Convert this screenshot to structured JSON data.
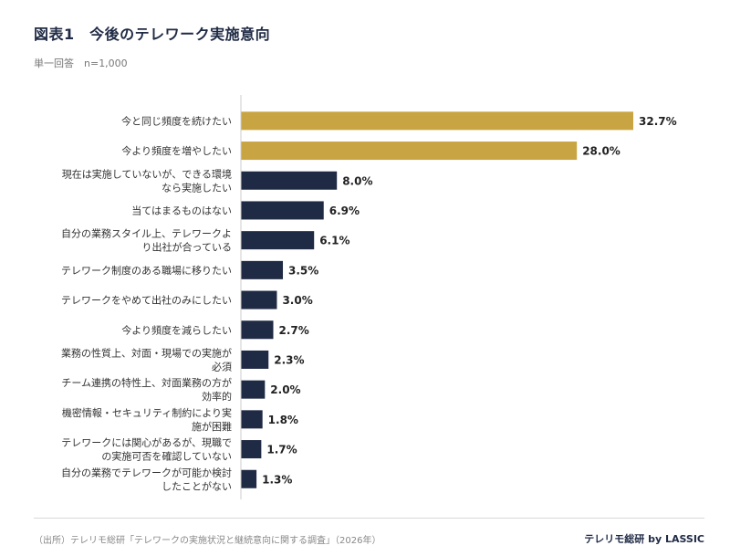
{
  "header": {
    "title": "図表1　今後のテレワーク実施意向",
    "subtitle": "単一回答　n=1,000"
  },
  "footer": {
    "source": "（出所）テレリモ総研「テレワークの実施状況と継続意向に関する調査」（2026年）",
    "brand": "テレリモ総研 by LASSIC"
  },
  "colors": {
    "highlight": "#c9a443",
    "default": "#1f2a44",
    "axis": "#cccccc"
  },
  "chart_data": {
    "type": "bar",
    "orientation": "horizontal",
    "title": "図表1　今後のテレワーク実施意向",
    "subtitle": "単一回答　n=1,000",
    "unit": "%",
    "xlim": [
      0,
      35
    ],
    "grid": false,
    "legend": "none",
    "categories": [
      [
        "今と同じ頻度を続けたい"
      ],
      [
        "今より頻度を増やしたい"
      ],
      [
        "現在は実施していないが、できる環境",
        "なら実施したい"
      ],
      [
        "当てはまるものはない"
      ],
      [
        "自分の業務スタイル上、テレワークよ",
        "り出社が合っている"
      ],
      [
        "テレワーク制度のある職場に移りたい"
      ],
      [
        "テレワークをやめて出社のみにしたい"
      ],
      [
        "今より頻度を減らしたい"
      ],
      [
        "業務の性質上、対面・現場での実施が",
        "必須"
      ],
      [
        "チーム連携の特性上、対面業務の方が",
        "効率的"
      ],
      [
        "機密情報・セキュリティ制約により実",
        "施が困難"
      ],
      [
        "テレワークには関心があるが、現職で",
        "の実施可否を確認していない"
      ],
      [
        "自分の業務でテレワークが可能か検討",
        "したことがない"
      ]
    ],
    "values": [
      32.7,
      28.0,
      8.0,
      6.9,
      6.1,
      3.5,
      3.0,
      2.7,
      2.3,
      2.0,
      1.8,
      1.7,
      1.3
    ],
    "value_labels": [
      "32.7%",
      "28.0%",
      "8.0%",
      "6.9%",
      "6.1%",
      "3.5%",
      "3.0%",
      "2.7%",
      "2.3%",
      "2.0%",
      "1.8%",
      "1.7%",
      "1.3%"
    ],
    "highlighted": [
      true,
      true,
      false,
      false,
      false,
      false,
      false,
      false,
      false,
      false,
      false,
      false,
      false
    ]
  }
}
